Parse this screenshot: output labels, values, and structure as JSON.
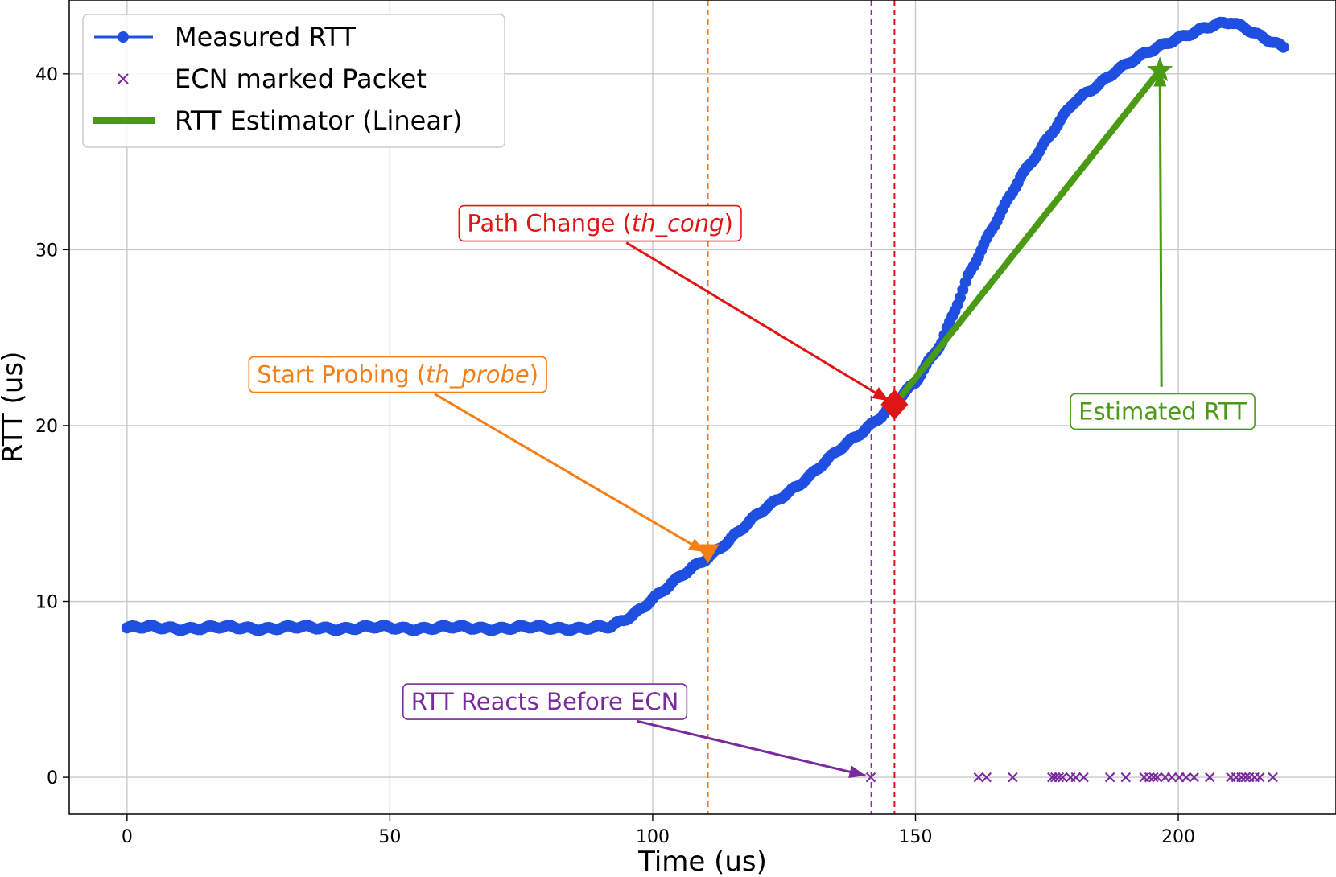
{
  "chart_data": {
    "type": "line",
    "title": "",
    "xlabel": "Time (us)",
    "ylabel": "RTT (us)",
    "xlim": [
      -11,
      230
    ],
    "ylim": [
      -2.1,
      44.2
    ],
    "x_ticks": [
      0,
      50,
      100,
      150,
      200
    ],
    "y_ticks": [
      0,
      10,
      20,
      30,
      40
    ],
    "grid": true,
    "legend_position": "top-left",
    "legend": [
      {
        "label": "Measured RTT",
        "marker": "line-dot",
        "color": "#1f4fe0"
      },
      {
        "label": "ECN marked Packet",
        "marker": "x",
        "color": "#7b2a9e"
      },
      {
        "label": "RTT Estimator (Linear)",
        "marker": "thick-line",
        "color": "#4a9a14"
      }
    ],
    "series": [
      {
        "name": "Measured RTT",
        "color": "#1f4fe0",
        "keypoints": [
          [
            0,
            8.5
          ],
          [
            92,
            8.5
          ],
          [
            96,
            9.2
          ],
          [
            100,
            10.2
          ],
          [
            110,
            12.4
          ],
          [
            120,
            14.9
          ],
          [
            130,
            17.2
          ],
          [
            140,
            19.7
          ],
          [
            145,
            21.0
          ],
          [
            150,
            22.4
          ],
          [
            155,
            24.8
          ],
          [
            160,
            28.5
          ],
          [
            170,
            34.2
          ],
          [
            180,
            38.3
          ],
          [
            188,
            40.2
          ],
          [
            195,
            41.3
          ],
          [
            200,
            42.1
          ],
          [
            205,
            42.6
          ],
          [
            210,
            42.9
          ],
          [
            213,
            42.6
          ],
          [
            217,
            42.0
          ],
          [
            220,
            41.5
          ]
        ]
      },
      {
        "name": "ECN marked Packet",
        "color": "#7b2a9e",
        "y": 0,
        "x": [
          141.5,
          162,
          163.5,
          168.5,
          176,
          176.6,
          177.3,
          178,
          179.5,
          180.5,
          182,
          187,
          190,
          193.5,
          194.5,
          195.3,
          196,
          197.5,
          198.8,
          200.2,
          201.5,
          203,
          206,
          210,
          211,
          212,
          212.8,
          213.5,
          214.5,
          215.5,
          218
        ]
      },
      {
        "name": "RTT Estimator (Linear)",
        "color": "#4a9a14",
        "x": [
          146,
          196.5
        ],
        "y": [
          21.2,
          40.2
        ]
      }
    ],
    "vlines": [
      {
        "x": 110.5,
        "color": "#f57e17"
      },
      {
        "x": 141.6,
        "color": "#8a2ab0"
      },
      {
        "x": 146.0,
        "color": "#e01515"
      }
    ],
    "markers": [
      {
        "x": 110.5,
        "y": 12.7,
        "shape": "triangle-down",
        "color": "#f57e17"
      },
      {
        "x": 146.0,
        "y": 21.2,
        "shape": "diamond",
        "color": "#e01515"
      },
      {
        "x": 196.5,
        "y": 40.2,
        "shape": "star",
        "color": "#4a9a14"
      }
    ],
    "annotations": [
      {
        "text_pre": "Path Change (",
        "text_em": "th_cong",
        "text_post": ")",
        "color": "#e01515",
        "box_x": 90,
        "box_y": 31.5,
        "arrow_from": [
          95,
          30.4
        ],
        "arrow_to": [
          145,
          21.4
        ]
      },
      {
        "text_pre": "Start Probing (",
        "text_em": "th_probe",
        "text_post": ")",
        "color": "#f57e17",
        "box_x": 51.5,
        "box_y": 22.9,
        "arrow_from": [
          58.5,
          21.8
        ],
        "arrow_to": [
          110,
          12.8
        ]
      },
      {
        "text_pre": "Estimated RTT",
        "text_em": "",
        "text_post": "",
        "color": "#4a9a14",
        "box_x": 197,
        "box_y": 20.8,
        "arrow_from": [
          196.8,
          22.2
        ],
        "arrow_to": [
          196.5,
          40.2
        ]
      },
      {
        "text_pre": "RTT Reacts Before ECN",
        "text_em": "",
        "text_post": "",
        "color": "#7b2a9e",
        "box_x": 79.5,
        "box_y": 4.3,
        "arrow_from": [
          97,
          3.2
        ],
        "arrow_to": [
          140.5,
          0.1
        ]
      }
    ]
  }
}
